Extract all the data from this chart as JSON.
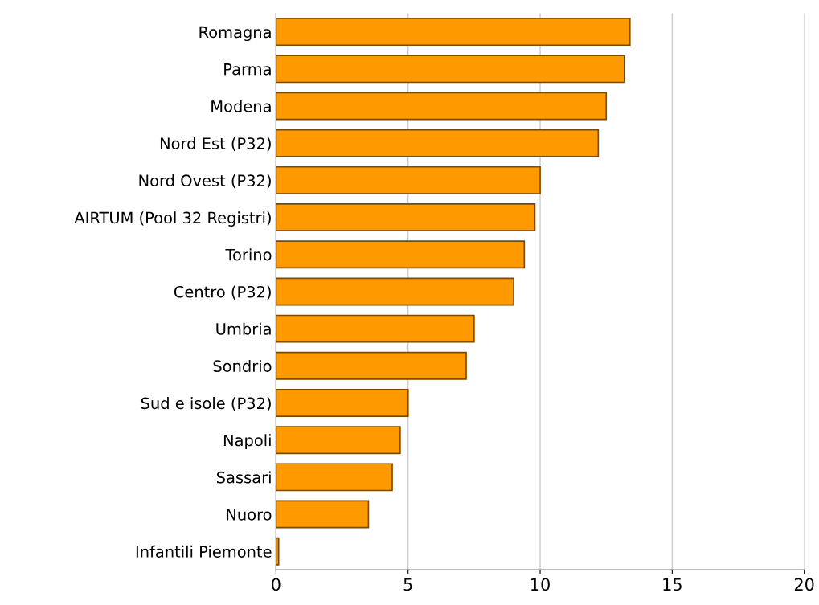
{
  "chart_data": {
    "type": "bar",
    "orientation": "horizontal",
    "categories": [
      "Romagna",
      "Parma",
      "Modena",
      "Nord Est (P32)",
      "Nord Ovest (P32)",
      "AIRTUM (Pool 32 Registri)",
      "Torino",
      "Centro (P32)",
      "Umbria",
      "Sondrio",
      "Sud e isole (P32)",
      "Napoli",
      "Sassari",
      "Nuoro",
      "Infantili Piemonte"
    ],
    "values": [
      13.4,
      13.2,
      12.5,
      12.2,
      10.0,
      9.8,
      9.4,
      9.0,
      7.5,
      7.2,
      5.0,
      4.7,
      4.4,
      3.5,
      0.1
    ],
    "color": "#ff9900",
    "xlim": [
      0,
      20
    ],
    "xticks": [
      0,
      5,
      10,
      15,
      20
    ],
    "grid": "x"
  }
}
